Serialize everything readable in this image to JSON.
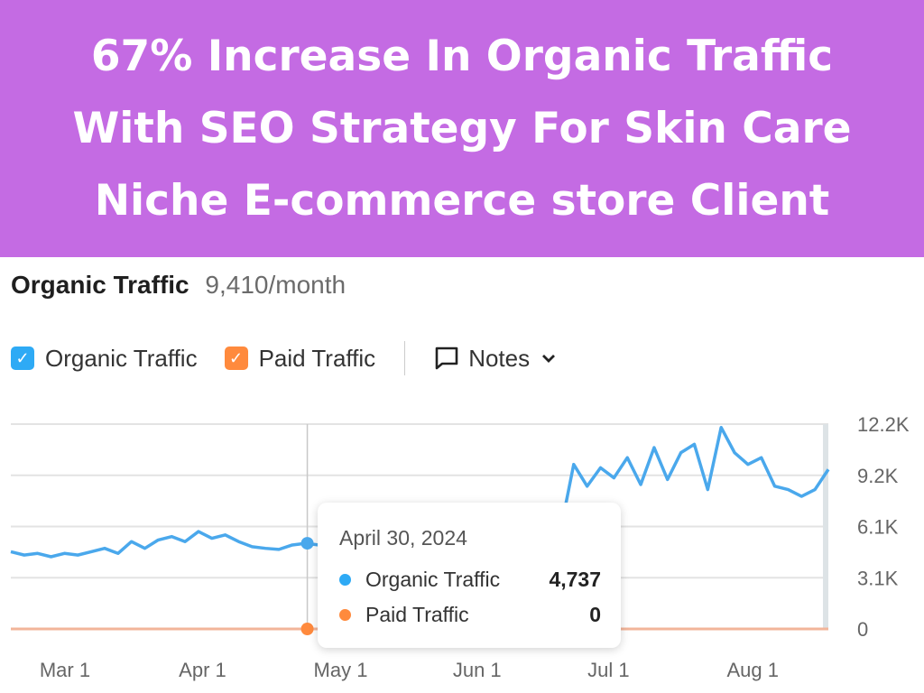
{
  "banner": {
    "lines": [
      "67% Increase In Organic Traffic",
      "With SEO Strategy For Skin Care",
      "Niche E-commerce store Client"
    ]
  },
  "header": {
    "title": "Organic Traffic",
    "value": "9,410/month"
  },
  "legend": {
    "organic": "Organic Traffic",
    "paid": "Paid Traffic",
    "notes": "Notes"
  },
  "colors": {
    "banner": "#c46be3",
    "organic": "#4aa8ec",
    "paid": "#ff8a3d",
    "organic_checkbox": "#2eaaf5"
  },
  "tooltip": {
    "date": "April 30, 2024",
    "organic_label": "Organic Traffic",
    "organic_value": "4,737",
    "paid_label": "Paid Traffic",
    "paid_value": "0"
  },
  "chart_data": {
    "type": "line",
    "title": "Organic Traffic",
    "x_range_days": [
      0,
      182
    ],
    "x_ticks": [
      {
        "label": "Mar 1",
        "day": 6
      },
      {
        "label": "Apr 1",
        "day": 37
      },
      {
        "label": "May 1",
        "day": 67
      },
      {
        "label": "Jun 1",
        "day": 98
      },
      {
        "label": "Jul 1",
        "day": 128
      },
      {
        "label": "Aug 1",
        "day": 159
      }
    ],
    "y_ticks": [
      {
        "label": "12.2K",
        "value": 12200
      },
      {
        "label": "9.2K",
        "value": 9150
      },
      {
        "label": "6.1K",
        "value": 6100
      },
      {
        "label": "3.1K",
        "value": 3050
      },
      {
        "label": "0",
        "value": 0
      }
    ],
    "ylim": [
      0,
      12200
    ],
    "hover_day": 66,
    "series": [
      {
        "name": "Organic Traffic",
        "values": [
          4600,
          4400,
          4500,
          4300,
          4500,
          4400,
          4600,
          4800,
          4500,
          5200,
          4800,
          5300,
          5500,
          5200,
          5800,
          5400,
          5600,
          5200,
          4900,
          4800,
          4737,
          5000,
          5100,
          5000,
          5200,
          5100,
          5300,
          5200,
          5400,
          5300,
          5500,
          5400,
          5600,
          5500,
          5700,
          5600,
          5500,
          5800,
          5600,
          5700,
          5500,
          5800,
          9800,
          8500,
          9600,
          9000,
          10200,
          8600,
          10800,
          8900,
          10500,
          11000,
          8300,
          12000,
          10500,
          9800,
          10200,
          8500,
          8300,
          7900,
          8300,
          9500
        ]
      },
      {
        "name": "Paid Traffic",
        "values": [
          0,
          0
        ]
      }
    ]
  }
}
